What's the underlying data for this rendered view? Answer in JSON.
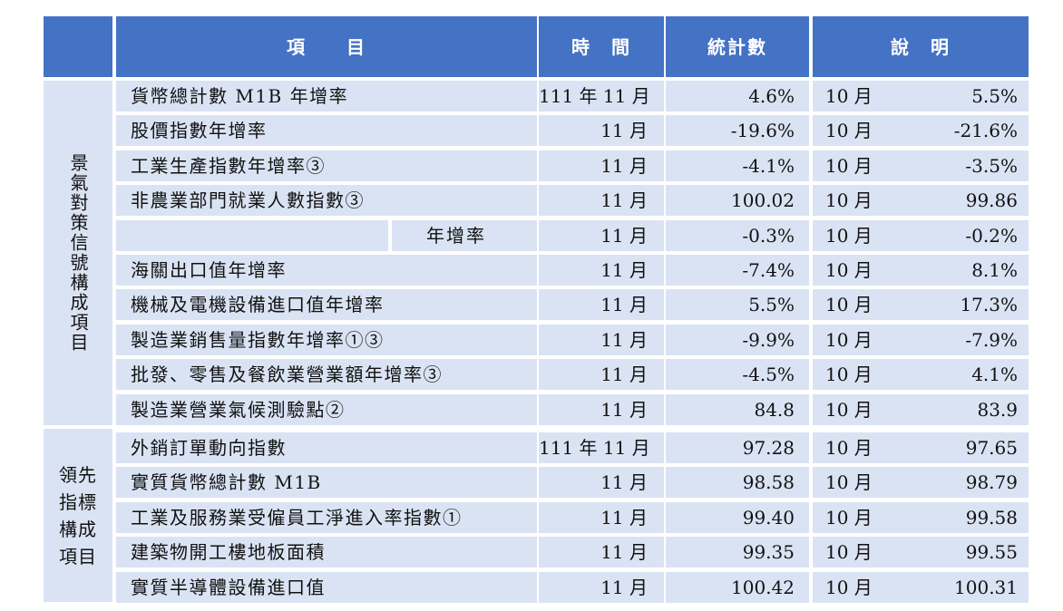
{
  "header": {
    "item": "項　　目",
    "time": "時　間",
    "stat": "統計數",
    "note": "說　明"
  },
  "groups": [
    {
      "label": "景氣對策信號構成項目",
      "rows": [
        {
          "item": "貨幣總計數 M1B 年增率",
          "time": "111 年 11 月",
          "stat": "4.6%",
          "note_month": "10 月",
          "note_value": "5.5%"
        },
        {
          "item": "股價指數年增率",
          "time": "11 月",
          "stat": "-19.6%",
          "note_month": "10 月",
          "note_value": "-21.6%"
        },
        {
          "item": "工業生產指數年增率③",
          "time": "11 月",
          "stat": "-4.1%",
          "note_month": "10 月",
          "note_value": "-3.5%"
        },
        {
          "item": "非農業部門就業人數指數③",
          "time": "11 月",
          "stat": "100.02",
          "note_month": "10 月",
          "note_value": "99.86"
        },
        {
          "item": "年增率",
          "sub": true,
          "time": "11 月",
          "stat": "-0.3%",
          "note_month": "10 月",
          "note_value": "-0.2%"
        },
        {
          "item": "海關出口值年增率",
          "time": "11 月",
          "stat": "-7.4%",
          "note_month": "10 月",
          "note_value": "8.1%"
        },
        {
          "item": "機械及電機設備進口值年增率",
          "time": "11 月",
          "stat": "5.5%",
          "note_month": "10 月",
          "note_value": "17.3%"
        },
        {
          "item": "製造業銷售量指數年增率①③",
          "time": "11 月",
          "stat": "-9.9%",
          "note_month": "10 月",
          "note_value": "-7.9%"
        },
        {
          "item": "批發、零售及餐飲業營業額年增率③",
          "time": "11 月",
          "stat": "-4.5%",
          "note_month": "10 月",
          "note_value": "4.1%"
        },
        {
          "item": "製造業營業氣候測驗點②",
          "time": "11 月",
          "stat": "84.8",
          "note_month": "10 月",
          "note_value": "83.9"
        }
      ]
    },
    {
      "label_lines": [
        "領先",
        "指標",
        "構成",
        "項目"
      ],
      "rows": [
        {
          "item": "外銷訂單動向指數",
          "time": "111 年 11 月",
          "stat": "97.28",
          "note_month": "10 月",
          "note_value": "97.65"
        },
        {
          "item": "實質貨幣總計數 M1B",
          "time": "11 月",
          "stat": "98.58",
          "note_month": "10 月",
          "note_value": "98.79"
        },
        {
          "item": "工業及服務業受僱員工淨進入率指數①",
          "time": "11 月",
          "stat": "99.40",
          "note_month": "10 月",
          "note_value": "99.58"
        },
        {
          "item": "建築物開工樓地板面積",
          "time": "11 月",
          "stat": "99.35",
          "note_month": "10 月",
          "note_value": "99.55"
        },
        {
          "item": "實質半導體設備進口值",
          "time": "11 月",
          "stat": "100.42",
          "note_month": "10 月",
          "note_value": "100.31"
        }
      ]
    }
  ]
}
